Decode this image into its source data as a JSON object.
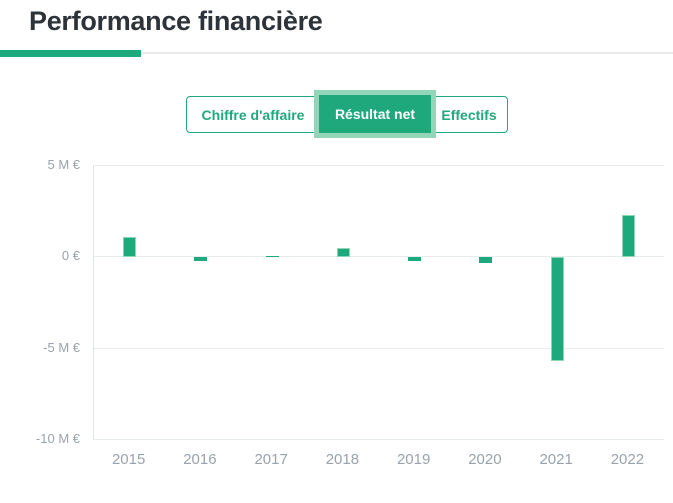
{
  "page": {
    "title": "Performance financière"
  },
  "tabs": {
    "chiffre_daffaire": "Chiffre d'affaire",
    "resultat_net": "Résultat net",
    "effectifs": "Effectifs"
  },
  "colors": {
    "accent_green": "#1ca97b",
    "selected_tab_green": "#1ea87b",
    "tab_border_green": "#21a87c",
    "halo_green": "#93d5b8",
    "bar_border_green": "#90d5b6",
    "gridline": "#e7ecef",
    "axis_text": "#9aa2ab",
    "title_text": "#2d3339"
  },
  "chart_data": {
    "type": "bar",
    "title": "Résultat net",
    "unit": "M€",
    "categories": [
      "2015",
      "2016",
      "2017",
      "2018",
      "2019",
      "2020",
      "2021",
      "2022"
    ],
    "values": [
      1.1,
      -0.2,
      0.1,
      0.5,
      -0.2,
      -0.3,
      -5.7,
      2.3
    ],
    "ylim": [
      -10,
      5
    ],
    "yticks": [
      {
        "value": 5,
        "label": "5 M €"
      },
      {
        "value": 0,
        "label": "0 €"
      },
      {
        "value": -5,
        "label": "-5 M €"
      },
      {
        "value": -10,
        "label": "-10 M €"
      }
    ],
    "grid": true,
    "legend": false,
    "bar_color": "#1ca97b",
    "xlabel": "",
    "ylabel": ""
  }
}
